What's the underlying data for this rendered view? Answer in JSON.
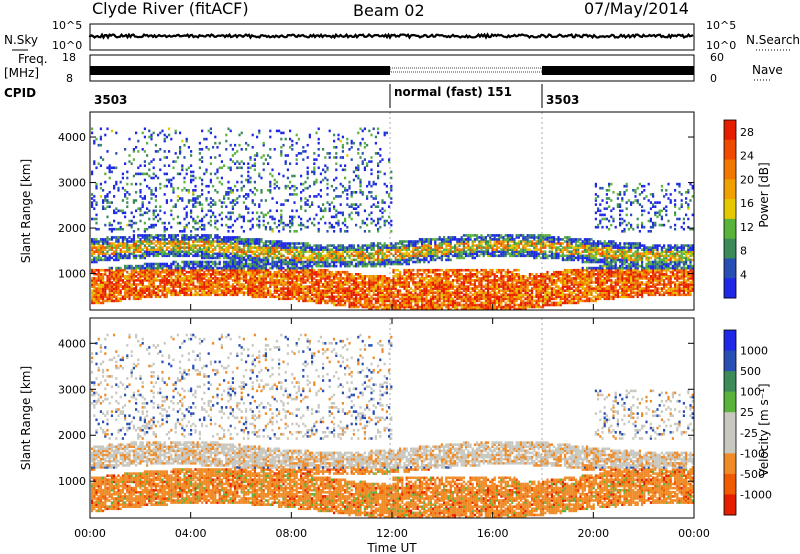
{
  "header": {
    "station": "Clyde River (fitACF)",
    "beam": "Beam 02",
    "date": "07/May/2014"
  },
  "top_panels": {
    "nsky_label": "N.Sky",
    "nsearch_label": "N.Search",
    "nsky_ticks": [
      "10^5",
      "10^0"
    ],
    "nsearch_ticks": [
      "10^5",
      "10^0"
    ],
    "freq_label_1": "Freq.",
    "freq_label_2": "[MHz]",
    "freq_ticks": [
      "18",
      "8"
    ],
    "nave_label": "Nave",
    "nave_ticks": [
      "60",
      "0"
    ],
    "cpid_label": "CPID",
    "cpid_segments": [
      "3503",
      "normal (fast) 151",
      "3503"
    ]
  },
  "colors": {
    "black": "#000000",
    "power": [
      "#1e28e6",
      "#2850b4",
      "#3c8c5a",
      "#5ab43c",
      "#e6c800",
      "#f0a000",
      "#f07800",
      "#f04a00",
      "#e61e00"
    ],
    "velocity": [
      "#e61e00",
      "#f05a00",
      "#f08c28",
      "#c8c8c0",
      "#c8c8c0",
      "#5ab43c",
      "#3c8c5a",
      "#2850b4",
      "#1e28e6"
    ]
  },
  "chart_data": [
    {
      "type": "heatmap",
      "title": "",
      "quantity": "Power",
      "ylabel": "Slant Range [km]",
      "yticks": [
        1000,
        2000,
        3000,
        4000
      ],
      "ylim": [
        200,
        4550
      ],
      "xticks": [
        "00:00",
        "04:00",
        "08:00",
        "12:00",
        "16:00",
        "20:00",
        "00:00"
      ],
      "xlim_hours": [
        0,
        24
      ],
      "colorbar_label": "Power [dB]",
      "colorbar_ticks": [
        "4",
        "8",
        "12",
        "16",
        "20",
        "24",
        "28"
      ],
      "colorbar_range": [
        0,
        30
      ]
    },
    {
      "type": "heatmap",
      "title": "",
      "quantity": "Velocity",
      "ylabel": "Slant Range [km]",
      "yticks": [
        1000,
        2000,
        3000,
        4000
      ],
      "ylim": [
        200,
        4550
      ],
      "xticks": [
        "00:00",
        "04:00",
        "08:00",
        "12:00",
        "16:00",
        "20:00",
        "00:00"
      ],
      "xlabel": "Time UT",
      "xlim_hours": [
        0,
        24
      ],
      "colorbar_label": "Velocity [m s⁻¹]",
      "colorbar_ticks": [
        "1000",
        "500",
        "100",
        "25",
        "-25",
        "-100",
        "-500",
        "-1000"
      ]
    }
  ]
}
